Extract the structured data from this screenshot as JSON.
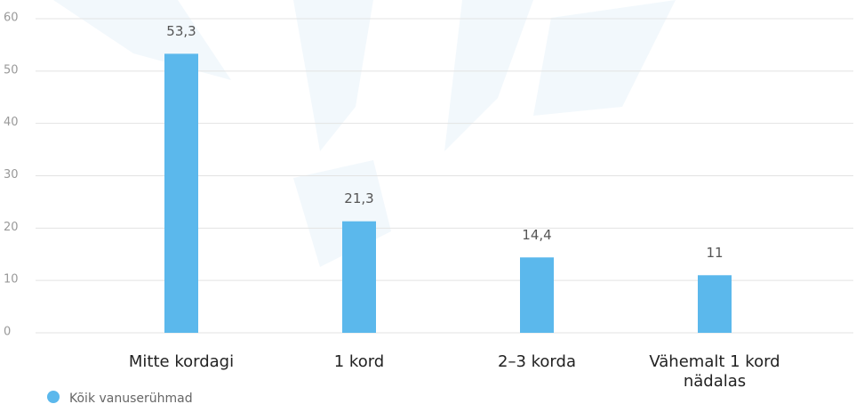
{
  "chart_data": {
    "type": "bar",
    "categories": [
      "Mitte kordagi",
      "1 kord",
      "2–3 korda",
      "Vähemalt 1 kord nädalas"
    ],
    "values": [
      53.3,
      21.3,
      14.4,
      11
    ],
    "value_labels": [
      "53,3",
      "21,3",
      "14,4",
      "11"
    ],
    "color": "#5bb8ec",
    "ylim": [
      0,
      60
    ],
    "yticks": [
      0,
      10,
      20,
      30,
      40,
      50,
      60
    ],
    "grid": true,
    "legend": {
      "position": "bottom-left",
      "entries": [
        {
          "name": "Kõik vanuserühmad",
          "color": "#5bb8ec"
        }
      ]
    }
  }
}
